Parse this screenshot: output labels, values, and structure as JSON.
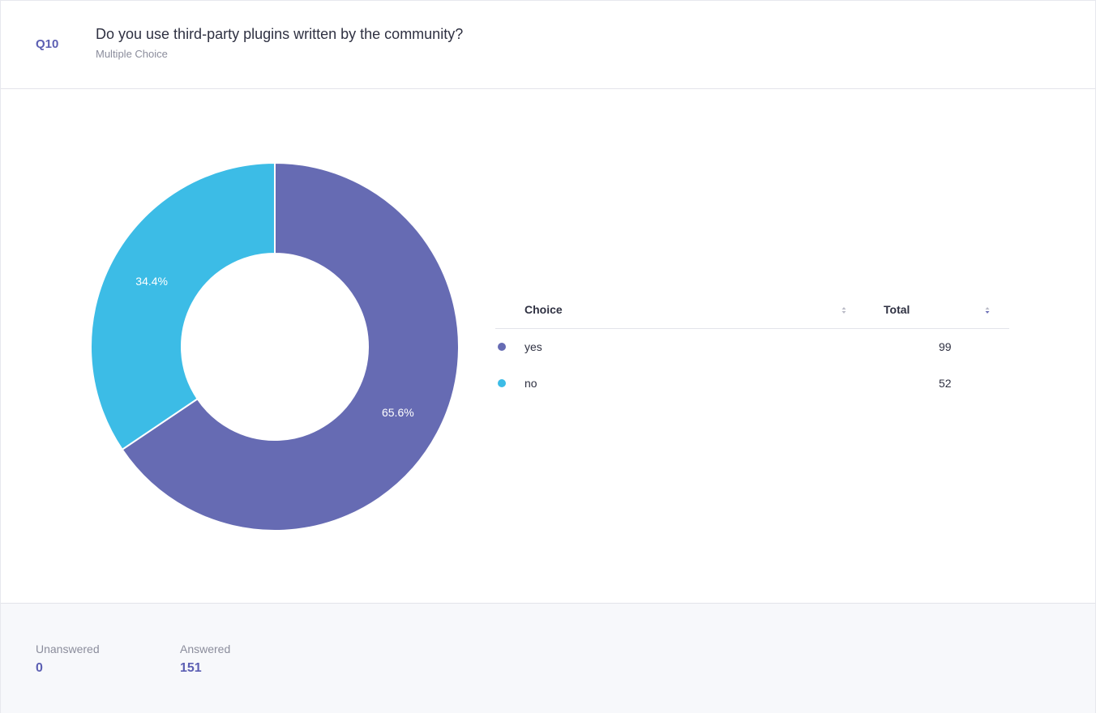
{
  "question": {
    "number": "Q10",
    "title": "Do you use third-party plugins written by the community?",
    "type": "Multiple Choice"
  },
  "chart_data": {
    "type": "pie",
    "style": "donut",
    "labels": [
      "yes",
      "no"
    ],
    "values": [
      99,
      52
    ],
    "percent_labels": [
      "65.6%",
      "34.4%"
    ],
    "colors": [
      "#666bb3",
      "#3cbce6"
    ]
  },
  "table": {
    "headers": {
      "choice": "Choice",
      "total": "Total"
    },
    "rows": [
      {
        "label": "yes",
        "total": "99",
        "color": "#666bb3"
      },
      {
        "label": "no",
        "total": "52",
        "color": "#3cbce6"
      }
    ]
  },
  "footer": {
    "unanswered_label": "Unanswered",
    "unanswered_value": "0",
    "answered_label": "Answered",
    "answered_value": "151"
  },
  "icons": {
    "sort": "sort-icon"
  }
}
